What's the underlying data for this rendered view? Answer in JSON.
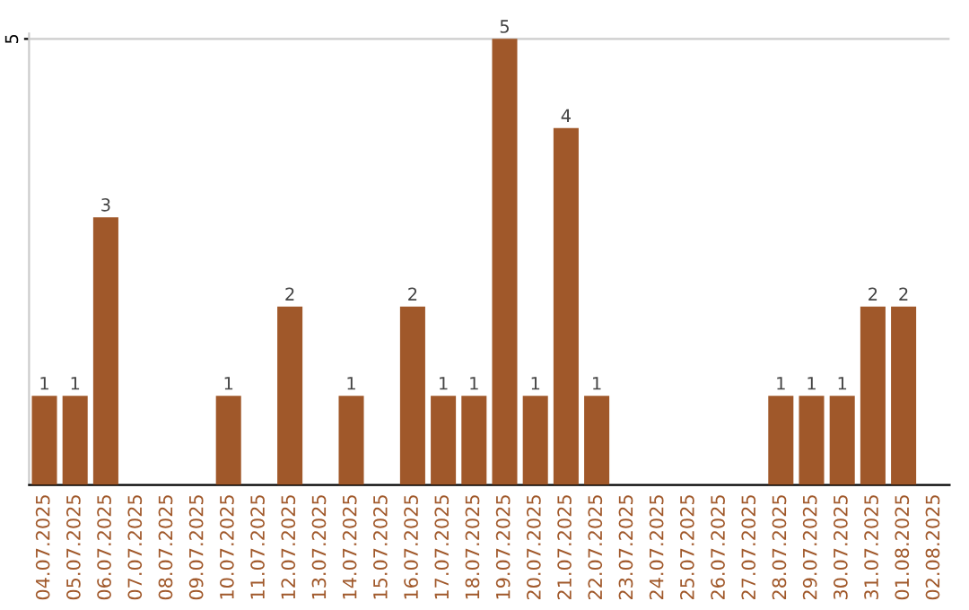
{
  "chart_data": {
    "type": "bar",
    "categories": [
      "04.07.2025",
      "05.07.2025",
      "06.07.2025",
      "07.07.2025",
      "08.07.2025",
      "09.07.2025",
      "10.07.2025",
      "11.07.2025",
      "12.07.2025",
      "13.07.2025",
      "14.07.2025",
      "15.07.2025",
      "16.07.2025",
      "17.07.2025",
      "18.07.2025",
      "19.07.2025",
      "20.07.2025",
      "21.07.2025",
      "22.07.2025",
      "23.07.2025",
      "24.07.2025",
      "25.07.2025",
      "26.07.2025",
      "27.07.2025",
      "28.07.2025",
      "29.07.2025",
      "30.07.2025",
      "31.07.2025",
      "01.08.2025",
      "02.08.2025"
    ],
    "values": [
      1,
      1,
      3,
      0,
      0,
      0,
      1,
      0,
      2,
      0,
      1,
      0,
      2,
      1,
      1,
      5,
      1,
      4,
      1,
      0,
      0,
      0,
      0,
      0,
      1,
      1,
      1,
      2,
      2,
      0
    ],
    "value_labels": [
      "1",
      "1",
      "3",
      null,
      null,
      null,
      "1",
      null,
      "2",
      null,
      "1",
      null,
      "2",
      "1",
      "1",
      "5",
      "1",
      "4",
      "1",
      null,
      null,
      null,
      null,
      null,
      "1",
      "1",
      "1",
      "2",
      "2",
      null
    ],
    "color": "#a0582a",
    "ylim": [
      0,
      5.06
    ],
    "yticks": [
      5
    ],
    "grid": "y"
  }
}
